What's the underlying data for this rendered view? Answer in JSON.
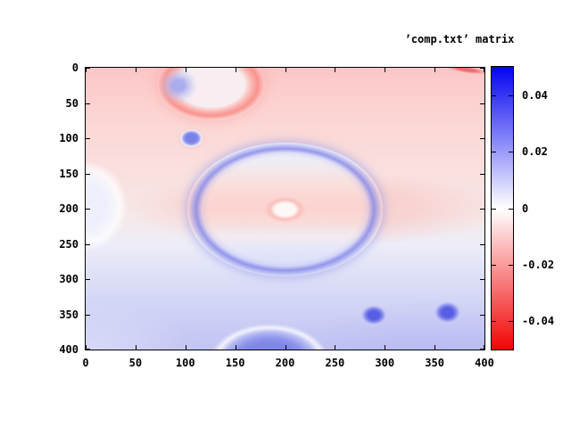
{
  "key_label": "’comp.txt’ matrix",
  "axes": {
    "x_tick_labels": [
      "0",
      "50",
      "100",
      "150",
      "200",
      "250",
      "300",
      "350",
      "400"
    ],
    "y_tick_labels": [
      "0",
      "50",
      "100",
      "150",
      "200",
      "250",
      "300",
      "350",
      "400"
    ]
  },
  "colorbar": {
    "tick_labels": [
      "0.04",
      "0.02",
      "0",
      "-0.02",
      "-0.04"
    ],
    "tick_values": [
      0.04,
      0.02,
      0,
      -0.02,
      -0.04
    ],
    "min": -0.05,
    "max": 0.05,
    "max_color": "#0404f2",
    "zero_color": "#ffffff",
    "min_color": "#f20404"
  },
  "chart_data": {
    "type": "heatmap",
    "title": "’comp.txt’ matrix",
    "xlabel": "",
    "ylabel": "",
    "x_range": [
      0,
      400
    ],
    "y_range": [
      0,
      400
    ],
    "y_axis_inverted": true,
    "x_ticks": [
      0,
      50,
      100,
      150,
      200,
      250,
      300,
      350,
      400
    ],
    "y_ticks": [
      0,
      50,
      100,
      150,
      200,
      250,
      300,
      350,
      400
    ],
    "colorbar_range": [
      -0.05,
      0.05
    ],
    "colorbar_tick_values": [
      0.04,
      0.02,
      0,
      -0.02,
      -0.04
    ],
    "palette": "blue (positive) - white (zero) - red (negative)",
    "background": "smooth field: mildly negative (pink) upper half fading through white to mildly positive (pale lavender-blue) lower half",
    "legend_position": "top-right outside plot",
    "grid": false,
    "features": [
      {
        "name": "mid-pink-band",
        "shape": "ellipse",
        "cx": 230,
        "cy": 200,
        "rx": 190,
        "ry": 55,
        "css": "pink-band",
        "description": "mildly negative (pink) horizontal band across the middle rows"
      },
      {
        "name": "left-edge-pale-blob",
        "shape": "ellipse",
        "cx": 2,
        "cy": 196,
        "rx": 40,
        "ry": 63,
        "css": "pale-blue-blob",
        "description": "near-zero pale blob attached to left edge"
      },
      {
        "name": "large-blue-ring",
        "shape": "ellipse",
        "cx": 200,
        "cy": 201,
        "rx": 98,
        "ry": 95,
        "css": "big-blue-ring",
        "description": "large positive (blue) ring centered near (200,200); interior has pink mid band"
      },
      {
        "name": "inner-red-ring",
        "shape": "ellipse",
        "cx": 200,
        "cy": 201,
        "rx": 21,
        "ry": 19,
        "css": "inner-red-ring",
        "description": "small negative (red) ring with near-zero core at center of large ring"
      },
      {
        "name": "top-red-ring-ellipse",
        "shape": "ellipse",
        "cx": 126,
        "cy": 24,
        "rx": 54,
        "ry": 51,
        "css": "red-ring",
        "description": "negative (red) ring ellipse clipped by top edge"
      },
      {
        "name": "top-ellipse-blue-patch",
        "shape": "ellipse",
        "cx": 93,
        "cy": 25,
        "rx": 20,
        "ry": 25,
        "css": "blue-patch",
        "description": "small positive patch inside top ellipse"
      },
      {
        "name": "small-blue-dot",
        "shape": "ellipse",
        "cx": 106,
        "cy": 100,
        "rx": 15,
        "ry": 16,
        "css": "blue-dot-ringed",
        "description": "positive (blue) dot with faint red outer ring near (105,100)"
      },
      {
        "name": "bottom-blue-dome",
        "shape": "ellipse",
        "cx": 184,
        "cy": 416,
        "rx": 60,
        "ry": 53,
        "css": "blue-dome",
        "description": "strong positive (blue) bump clipped by bottom edge"
      },
      {
        "name": "blue-dot-a",
        "shape": "ellipse",
        "cx": 289,
        "cy": 351,
        "rx": 14,
        "ry": 16,
        "css": "blue-dot",
        "description": "positive (blue) dot"
      },
      {
        "name": "blue-dot-b",
        "shape": "ellipse",
        "cx": 363,
        "cy": 347,
        "rx": 15,
        "ry": 17,
        "css": "blue-dot",
        "description": "positive (blue) dot"
      },
      {
        "name": "top-right-red-streak",
        "shape": "ellipse",
        "cx": 382,
        "cy": 3,
        "rx": 22,
        "ry": 5,
        "css": "red-streak",
        "description": "thin negative (red) streak at top-right corner"
      }
    ]
  }
}
